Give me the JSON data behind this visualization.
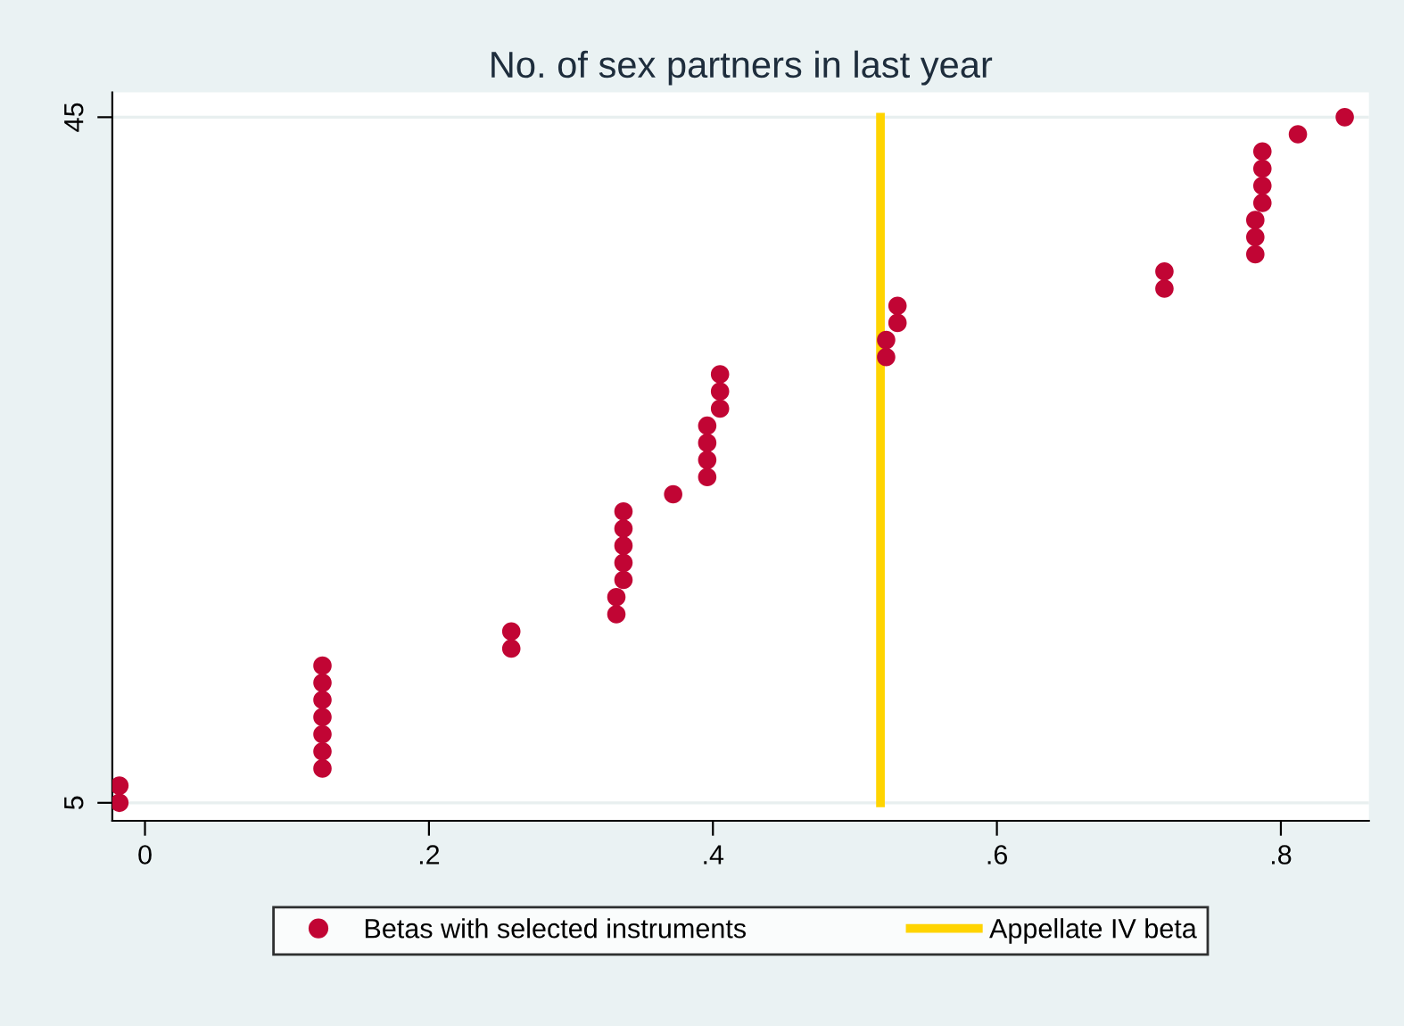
{
  "chart_data": {
    "type": "scatter",
    "title": "No. of sex partners in last year",
    "xlim": [
      -0.023,
      0.862
    ],
    "ylim": [
      3.95,
      46.45
    ],
    "xticks": [
      {
        "value": 0,
        "label": "0"
      },
      {
        "value": 0.2,
        "label": ".2"
      },
      {
        "value": 0.4,
        "label": ".4"
      },
      {
        "value": 0.6,
        "label": ".6"
      },
      {
        "value": 0.8,
        "label": ".8"
      }
    ],
    "yticks": [
      5,
      45
    ],
    "grid": "y",
    "legend": "bottom",
    "series": [
      {
        "name": "Betas with selected instruments",
        "marker": "circle",
        "color": "#c10534",
        "x": [
          -0.018,
          -0.018,
          0.125,
          0.125,
          0.125,
          0.125,
          0.125,
          0.125,
          0.125,
          0.258,
          0.258,
          0.332,
          0.332,
          0.337,
          0.337,
          0.337,
          0.337,
          0.337,
          0.372,
          0.396,
          0.396,
          0.396,
          0.396,
          0.405,
          0.405,
          0.405,
          0.522,
          0.522,
          0.53,
          0.53,
          0.718,
          0.718,
          0.782,
          0.782,
          0.782,
          0.787,
          0.787,
          0.787,
          0.787,
          0.812,
          0.845
        ],
        "values": [
          5,
          6,
          7,
          8,
          9,
          10,
          11,
          12,
          13,
          14,
          15,
          16,
          17,
          18,
          19,
          20,
          21,
          22,
          23,
          24,
          25,
          26,
          27,
          28,
          29,
          30,
          31,
          32,
          33,
          34,
          35,
          36,
          37,
          38,
          39,
          40,
          41,
          42,
          43,
          44,
          45
        ]
      },
      {
        "name": "Appellate IV beta",
        "type": "line",
        "marker": "none",
        "color": "#ffd400",
        "x": [
          0.518,
          0.518
        ],
        "values": [
          5,
          45
        ]
      }
    ]
  }
}
